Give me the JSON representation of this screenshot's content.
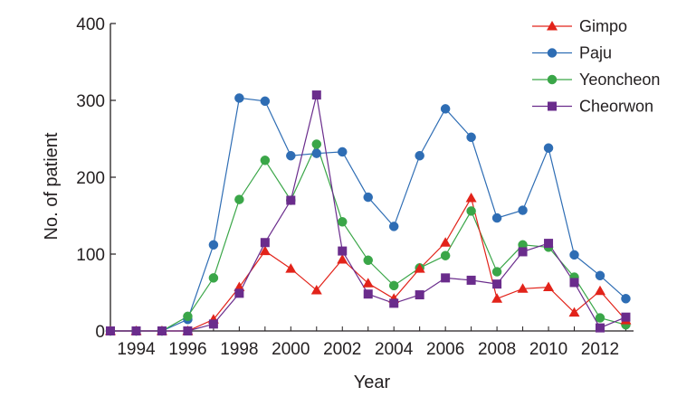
{
  "chart_data": {
    "type": "line",
    "title": "",
    "xlabel": "Year",
    "ylabel": "No. of patient",
    "xlim": [
      1993,
      2013.3
    ],
    "ylim": [
      0,
      400
    ],
    "x": [
      1993,
      1994,
      1995,
      1996,
      1997,
      1998,
      1999,
      2000,
      2001,
      2002,
      2003,
      2004,
      2005,
      2006,
      2007,
      2008,
      2009,
      2010,
      2011,
      2012,
      2013
    ],
    "x_ticks": [
      1994,
      1996,
      1998,
      2000,
      2002,
      2004,
      2006,
      2008,
      2010,
      2012
    ],
    "x_tick_labels": [
      "1994",
      "1996",
      "1998",
      "2000",
      "2002",
      "2004",
      "2006",
      "2008",
      "2010",
      "2012"
    ],
    "y_ticks": [
      0,
      100,
      200,
      300,
      400
    ],
    "y_tick_labels": [
      "0",
      "100",
      "200",
      "300",
      "400"
    ],
    "grid": false,
    "legend_position": "top-right",
    "series": [
      {
        "name": "Gimpo",
        "color": "#e2231a",
        "marker": "triangle",
        "values": [
          0,
          0,
          0,
          0,
          15,
          57,
          104,
          81,
          53,
          93,
          62,
          42,
          81,
          115,
          173,
          42,
          55,
          57,
          24,
          52,
          14
        ]
      },
      {
        "name": "Paju",
        "color": "#2e6db4",
        "marker": "circle",
        "values": [
          0,
          0,
          0,
          15,
          112,
          303,
          299,
          228,
          231,
          233,
          174,
          136,
          228,
          289,
          252,
          147,
          157,
          238,
          99,
          72,
          42
        ]
      },
      {
        "name": "Yeoncheon",
        "color": "#3aa648",
        "marker": "circle",
        "values": [
          0,
          0,
          0,
          19,
          69,
          171,
          222,
          170,
          243,
          142,
          92,
          59,
          82,
          98,
          156,
          77,
          112,
          109,
          70,
          17,
          8
        ]
      },
      {
        "name": "Cheorwon",
        "color": "#6a2c8c",
        "marker": "square",
        "values": [
          0,
          0,
          0,
          0,
          9,
          49,
          115,
          170,
          307,
          104,
          48,
          36,
          47,
          69,
          66,
          61,
          103,
          114,
          63,
          4,
          18
        ]
      }
    ]
  }
}
